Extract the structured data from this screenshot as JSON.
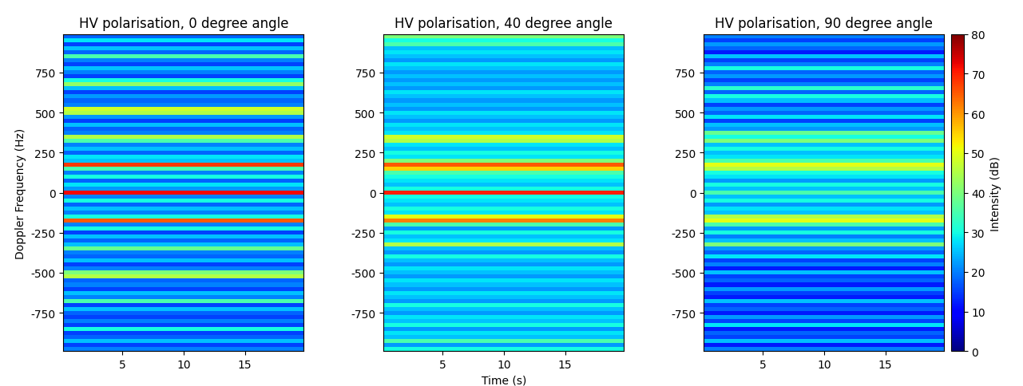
{
  "chart_data": [
    {
      "type": "heatmap",
      "title": "HV polarisation, 0 degree angle",
      "ylabel": "Doppler Frequency (Hz)",
      "xlim": [
        0.2,
        19.8
      ],
      "ylim": [
        -990,
        990
      ],
      "xticks": [
        5,
        10,
        15
      ],
      "yticks": [
        -750,
        -500,
        -250,
        0,
        250,
        500,
        750
      ],
      "zlim": [
        0,
        80
      ],
      "y": [
        -1000,
        -975,
        -950,
        -925,
        -900,
        -875,
        -850,
        -825,
        -800,
        -775,
        -750,
        -725,
        -700,
        -675,
        -650,
        -625,
        -600,
        -575,
        -550,
        -525,
        -500,
        -475,
        -450,
        -425,
        -400,
        -375,
        -350,
        -325,
        -300,
        -275,
        -250,
        -225,
        -200,
        -175,
        -150,
        -125,
        -100,
        -75,
        -50,
        -25,
        0,
        25,
        50,
        75,
        100,
        125,
        150,
        175,
        200,
        225,
        250,
        275,
        300,
        325,
        350,
        375,
        400,
        425,
        450,
        475,
        500,
        525,
        550,
        575,
        600,
        625,
        650,
        675,
        700,
        725,
        750,
        775,
        800,
        825,
        850,
        875,
        900,
        925,
        950,
        975,
        1000
      ],
      "cells": [
        18,
        20,
        15,
        25,
        18,
        15,
        30,
        15,
        20,
        15,
        18,
        25,
        15,
        35,
        20,
        25,
        15,
        20,
        18,
        45,
        40,
        20,
        15,
        25,
        18,
        20,
        38,
        25,
        18,
        25,
        15,
        30,
        20,
        65,
        30,
        20,
        25,
        18,
        30,
        20,
        72,
        22,
        28,
        18,
        30,
        20,
        35,
        68,
        25,
        28,
        18,
        25,
        20,
        35,
        45,
        20,
        18,
        25,
        15,
        22,
        45,
        48,
        20,
        18,
        22,
        15,
        25,
        42,
        30,
        15,
        20,
        25,
        15,
        20,
        35,
        18,
        25,
        15,
        28,
        18,
        22
      ]
    },
    {
      "type": "heatmap",
      "title": "HV polarisation, 40 degree angle",
      "xlabel": "Time (s)",
      "xlim": [
        0.2,
        19.8
      ],
      "ylim": [
        -990,
        990
      ],
      "xticks": [
        5,
        10,
        15
      ],
      "yticks": [
        -750,
        -500,
        -250,
        0,
        250,
        500,
        750
      ],
      "zlim": [
        0,
        80
      ],
      "y": [
        -1000,
        -975,
        -950,
        -925,
        -900,
        -875,
        -850,
        -825,
        -800,
        -775,
        -750,
        -725,
        -700,
        -675,
        -650,
        -625,
        -600,
        -575,
        -550,
        -525,
        -500,
        -475,
        -450,
        -425,
        -400,
        -375,
        -350,
        -325,
        -300,
        -275,
        -250,
        -225,
        -200,
        -175,
        -150,
        -125,
        -100,
        -75,
        -50,
        -25,
        0,
        25,
        50,
        75,
        100,
        125,
        150,
        175,
        200,
        225,
        250,
        275,
        300,
        325,
        350,
        375,
        400,
        425,
        450,
        475,
        500,
        525,
        550,
        575,
        600,
        625,
        650,
        675,
        700,
        725,
        750,
        775,
        800,
        825,
        850,
        875,
        900,
        925,
        950,
        975,
        1000
      ],
      "cells": [
        25,
        30,
        22,
        35,
        25,
        28,
        22,
        30,
        25,
        28,
        22,
        25,
        30,
        22,
        25,
        28,
        22,
        25,
        28,
        22,
        25,
        28,
        22,
        25,
        30,
        22,
        25,
        45,
        28,
        25,
        30,
        22,
        35,
        62,
        50,
        28,
        30,
        25,
        28,
        30,
        70,
        30,
        25,
        28,
        30,
        35,
        55,
        65,
        40,
        28,
        30,
        25,
        28,
        45,
        48,
        28,
        25,
        28,
        22,
        25,
        28,
        22,
        25,
        22,
        25,
        28,
        22,
        25,
        22,
        25,
        22,
        25,
        28,
        22,
        25,
        28,
        25,
        35,
        30,
        40,
        35
      ]
    },
    {
      "type": "heatmap",
      "title": "HV polarisation, 90 degree angle",
      "xlim": [
        0.2,
        19.8
      ],
      "ylim": [
        -990,
        990
      ],
      "xticks": [
        5,
        10,
        15
      ],
      "yticks": [
        -750,
        -500,
        -250,
        0,
        250,
        500,
        750
      ],
      "zlim": [
        0,
        80
      ],
      "colorbar": {
        "label": "Intensity (dB)",
        "ticks": [
          0,
          10,
          20,
          30,
          40,
          50,
          60,
          70,
          80
        ]
      },
      "y": [
        -1000,
        -975,
        -950,
        -925,
        -900,
        -875,
        -850,
        -825,
        -800,
        -775,
        -750,
        -725,
        -700,
        -675,
        -650,
        -625,
        -600,
        -575,
        -550,
        -525,
        -500,
        -475,
        -450,
        -425,
        -400,
        -375,
        -350,
        -325,
        -300,
        -275,
        -250,
        -225,
        -200,
        -175,
        -150,
        -125,
        -100,
        -75,
        -50,
        -25,
        0,
        25,
        50,
        75,
        100,
        125,
        150,
        175,
        200,
        225,
        250,
        275,
        300,
        325,
        350,
        375,
        400,
        425,
        450,
        475,
        500,
        525,
        550,
        575,
        600,
        625,
        650,
        675,
        700,
        725,
        750,
        775,
        800,
        825,
        850,
        875,
        900,
        925,
        950,
        975,
        1000
      ],
      "cells": [
        15,
        20,
        12,
        25,
        15,
        18,
        12,
        28,
        15,
        22,
        12,
        18,
        15,
        25,
        12,
        15,
        22,
        12,
        18,
        15,
        25,
        12,
        20,
        15,
        28,
        18,
        22,
        40,
        25,
        20,
        30,
        22,
        35,
        50,
        45,
        25,
        28,
        22,
        30,
        25,
        35,
        25,
        30,
        22,
        28,
        30,
        45,
        50,
        35,
        28,
        25,
        30,
        25,
        40,
        30,
        38,
        22,
        25,
        15,
        28,
        18,
        22,
        15,
        25,
        30,
        18,
        32,
        20,
        15,
        22,
        18,
        30,
        20,
        15,
        25,
        12,
        18,
        22,
        15,
        20,
        25
      ]
    }
  ]
}
